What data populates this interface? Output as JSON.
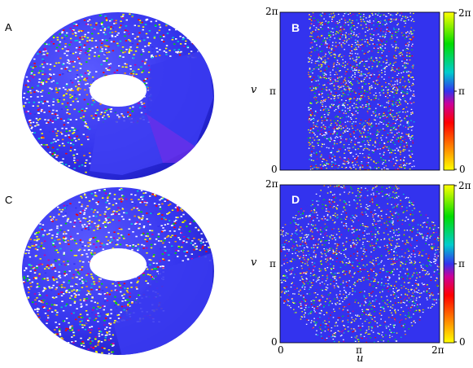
{
  "panels": {
    "a": {
      "letter": "A"
    },
    "b": {
      "letter": "B"
    },
    "c": {
      "letter": "C"
    },
    "d": {
      "letter": "D"
    }
  },
  "ticks": {
    "b": {
      "ytop": "2π",
      "ymid": "π",
      "ybot": "0"
    },
    "d": {
      "ytop": "2π",
      "ymid": "π",
      "ybot": "0",
      "x0": "0",
      "xmid": "π",
      "xmax": "2π"
    }
  },
  "axis_labels": {
    "u": "u",
    "v_b": "v",
    "v_d": "v"
  },
  "colorbars": {
    "b": {
      "top": "2π",
      "mid": "π",
      "bot": "0"
    },
    "d": {
      "top": "2π",
      "mid": "π",
      "bot": "0"
    }
  },
  "colors": {
    "base_blue": "#3333ee",
    "colormap": [
      "#ffff00",
      "#ff9900",
      "#ff0000",
      "#cc0099",
      "#3333ee",
      "#00cccc",
      "#00dd00",
      "#ffff00"
    ]
  }
}
